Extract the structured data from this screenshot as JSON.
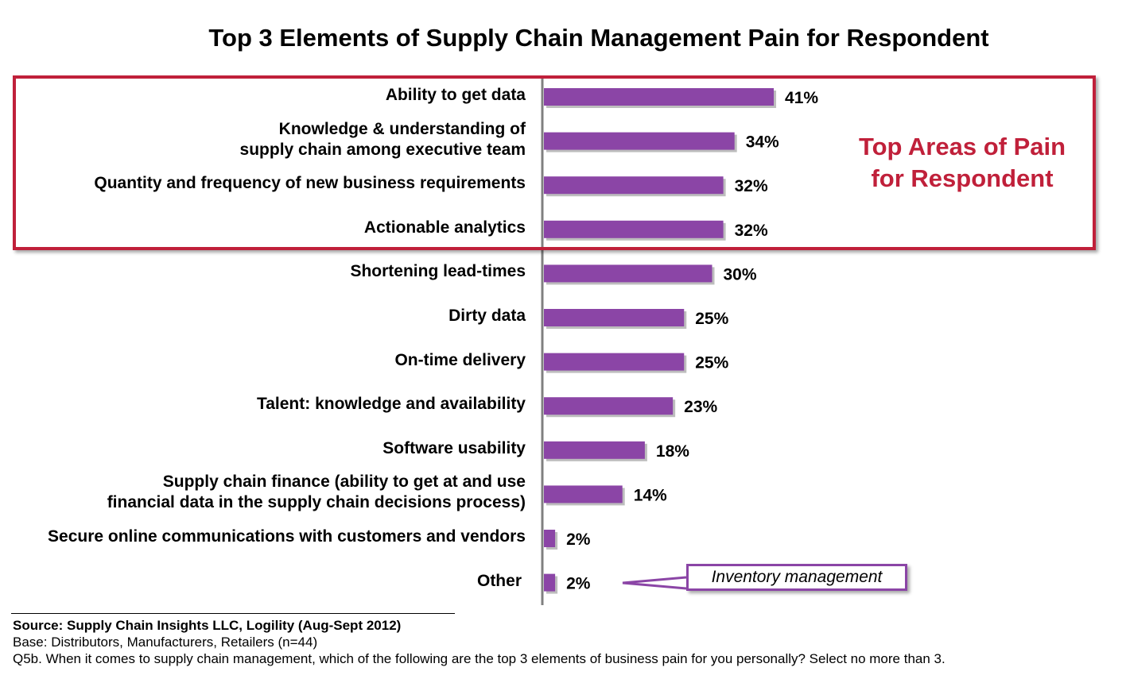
{
  "chart_data": {
    "type": "bar",
    "orientation": "horizontal",
    "title": "Top 3 Elements of Supply Chain Management Pain for Respondent",
    "categories": [
      [
        "Ability to get data"
      ],
      [
        "Knowledge & understanding of",
        "supply chain among executive team"
      ],
      [
        "Quantity and frequency of new business requirements"
      ],
      [
        "Actionable analytics"
      ],
      [
        "Shortening lead-times"
      ],
      [
        "Dirty data"
      ],
      [
        "On-time delivery"
      ],
      [
        "Talent: knowledge and availability"
      ],
      [
        "Software usability"
      ],
      [
        "Supply chain finance (ability to get at and use",
        "financial data in the supply chain decisions process)"
      ],
      [
        "Secure online communications with customers and vendors"
      ],
      [
        "Other"
      ]
    ],
    "values": [
      41,
      34,
      32,
      32,
      30,
      25,
      25,
      23,
      18,
      14,
      2,
      2
    ],
    "value_labels": [
      "41%",
      "34%",
      "32%",
      "32%",
      "30%",
      "25%",
      "25%",
      "23%",
      "18%",
      "14%",
      "2%",
      "2%"
    ],
    "bar_color": "#8b45a6",
    "highlight_color": "#c0203a"
  },
  "annotations": {
    "highlight_text_line1": "Top Areas of Pain",
    "highlight_text_line2": "for Respondent",
    "callout_text": "Inventory management"
  },
  "source": {
    "line1": "Source:  Supply Chain Insights LLC, Logility (Aug-Sept 2012)",
    "line2": "Base:  Distributors, Manufacturers, Retailers (n=44)",
    "line3": "Q5b. When it comes to supply chain management, which of the following are the top 3 elements of business pain for you personally? Select no more than 3."
  }
}
